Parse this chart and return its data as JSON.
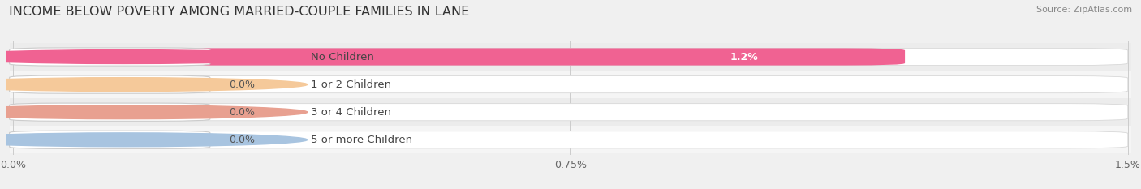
{
  "title": "INCOME BELOW POVERTY AMONG MARRIED-COUPLE FAMILIES IN LANE",
  "source": "Source: ZipAtlas.com",
  "categories": [
    "No Children",
    "1 or 2 Children",
    "3 or 4 Children",
    "5 or more Children"
  ],
  "values": [
    1.2,
    0.0,
    0.0,
    0.0
  ],
  "bar_colors": [
    "#f06292",
    "#f5c99a",
    "#e8a090",
    "#a8c4e0"
  ],
  "xlim": [
    0.0,
    1.5
  ],
  "xticks": [
    0.0,
    0.75,
    1.5
  ],
  "xtick_labels": [
    "0.0%",
    "0.75%",
    "1.5%"
  ],
  "value_labels": [
    "1.2%",
    "0.0%",
    "0.0%",
    "0.0%"
  ],
  "bg_color": "#f0f0f0",
  "bar_bg_color": "#ffffff",
  "title_fontsize": 11.5,
  "tick_fontsize": 9,
  "label_fontsize": 9.5,
  "value_fontsize": 9
}
